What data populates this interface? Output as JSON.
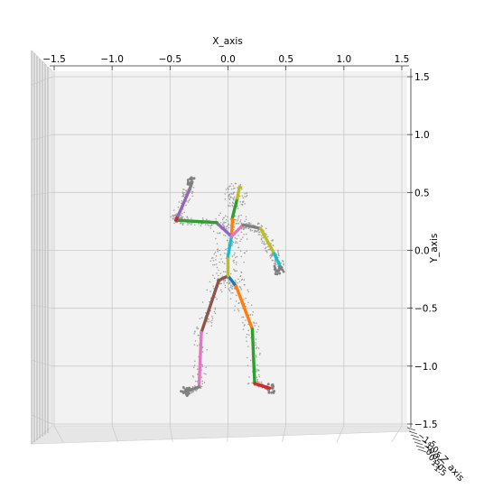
{
  "chart_data": {
    "type": "scatter",
    "projection": "3d",
    "xlabel": "X_axis",
    "ylabel": "Y_axis",
    "zlabel": "Z_axis",
    "xlim": [
      -1.5,
      1.5
    ],
    "ylim": [
      -1.5,
      1.5
    ],
    "xticks": [
      "−1.5",
      "−1.0",
      "−0.5",
      "0.0",
      "0.5",
      "1.0",
      "1.5"
    ],
    "yticks": [
      "1.5",
      "1.0",
      "0.5",
      "0.0",
      "−0.5",
      "−1.0",
      "−1.5"
    ],
    "grid": true,
    "skeleton_joints": {
      "pelvis": [
        0.0,
        -0.22
      ],
      "l_hip": [
        -0.08,
        -0.26
      ],
      "r_hip": [
        0.07,
        -0.31
      ],
      "l_knee": [
        -0.23,
        -0.71
      ],
      "r_knee": [
        0.21,
        -0.68
      ],
      "l_ankle": [
        -0.25,
        -1.18
      ],
      "r_ankle": [
        0.23,
        -1.15
      ],
      "l_foot": [
        -0.37,
        -1.22
      ],
      "r_foot": [
        0.36,
        -1.19
      ],
      "spine1": [
        0.0,
        -0.05
      ],
      "spine2": [
        0.03,
        0.12
      ],
      "neck": [
        0.04,
        0.29
      ],
      "head": [
        0.1,
        0.55
      ],
      "head_top": [
        0.08,
        0.45
      ],
      "l_collar": [
        -0.1,
        0.24
      ],
      "r_collar": [
        0.13,
        0.22
      ],
      "l_shoulder": [
        -0.45,
        0.26
      ],
      "r_shoulder": [
        0.28,
        0.19
      ],
      "l_elbow": [
        -0.43,
        0.3
      ],
      "r_elbow": [
        0.4,
        -0.03
      ],
      "l_wrist": [
        -0.33,
        0.53
      ],
      "r_wrist": [
        0.45,
        -0.14
      ],
      "l_hand": [
        -0.31,
        0.59
      ],
      "r_hand": [
        0.44,
        -0.17
      ]
    },
    "bones": [
      {
        "from": "pelvis",
        "to": "l_hip",
        "color": "#8c564b"
      },
      {
        "from": "pelvis",
        "to": "r_hip",
        "color": "#1f77b4"
      },
      {
        "from": "l_hip",
        "to": "l_knee",
        "color": "#8c564b"
      },
      {
        "from": "r_hip",
        "to": "r_knee",
        "color": "#ff7f0e"
      },
      {
        "from": "l_knee",
        "to": "l_ankle",
        "color": "#e377c2"
      },
      {
        "from": "r_knee",
        "to": "r_ankle",
        "color": "#2ca02c"
      },
      {
        "from": "l_ankle",
        "to": "l_foot",
        "color": "#7f7f7f"
      },
      {
        "from": "r_ankle",
        "to": "r_foot",
        "color": "#d62728"
      },
      {
        "from": "pelvis",
        "to": "spine1",
        "color": "#bcbd22"
      },
      {
        "from": "spine1",
        "to": "spine2",
        "color": "#17becf"
      },
      {
        "from": "spine2",
        "to": "neck",
        "color": "#ff7f0e"
      },
      {
        "from": "neck",
        "to": "head_top",
        "color": "#2ca02c"
      },
      {
        "from": "head_top",
        "to": "head",
        "color": "#bcbd22"
      },
      {
        "from": "spine2",
        "to": "l_collar",
        "color": "#9467bd"
      },
      {
        "from": "spine2",
        "to": "r_collar",
        "color": "#e377c2"
      },
      {
        "from": "l_collar",
        "to": "l_shoulder",
        "color": "#2ca02c"
      },
      {
        "from": "l_shoulder",
        "to": "l_elbow",
        "color": "#d62728"
      },
      {
        "from": "l_elbow",
        "to": "l_wrist",
        "color": "#9467bd"
      },
      {
        "from": "l_wrist",
        "to": "l_hand",
        "color": "#7f7f7f"
      },
      {
        "from": "r_collar",
        "to": "r_shoulder",
        "color": "#7f7f7f"
      },
      {
        "from": "r_shoulder",
        "to": "r_elbow",
        "color": "#bcbd22"
      },
      {
        "from": "r_elbow",
        "to": "r_wrist",
        "color": "#17becf"
      },
      {
        "from": "r_wrist",
        "to": "r_hand",
        "color": "#7f7f7f"
      }
    ]
  }
}
